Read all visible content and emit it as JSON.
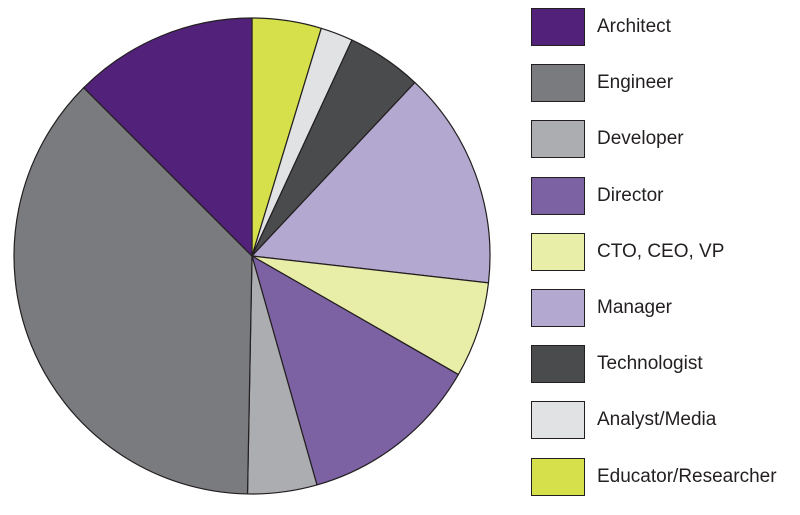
{
  "chart_data": {
    "type": "pie",
    "title": "",
    "legend_position": "right",
    "slices": [
      {
        "label": "Educator/Researcher",
        "value": 4.7,
        "color": "#d5e04a"
      },
      {
        "label": "Analyst/Media",
        "value": 2.2,
        "color": "#e1e2e3"
      },
      {
        "label": "Technologist",
        "value": 5.1,
        "color": "#4a4b4d"
      },
      {
        "label": "Manager",
        "value": 14.8,
        "color": "#b3a8cf"
      },
      {
        "label": "CTO, CEO, VP",
        "value": 6.5,
        "color": "#e8eea8"
      },
      {
        "label": "Director",
        "value": 12.3,
        "color": "#7c62a3"
      },
      {
        "label": "Developer",
        "value": 4.7,
        "color": "#acadb0"
      },
      {
        "label": "Engineer",
        "value": 37.2,
        "color": "#7a7b7e"
      },
      {
        "label": "Architect",
        "value": 12.5,
        "color": "#52227b"
      }
    ]
  },
  "legend": {
    "items": [
      {
        "label": "Architect",
        "color": "#52227b"
      },
      {
        "label": "Engineer",
        "color": "#7a7b7e"
      },
      {
        "label": "Developer",
        "color": "#acadb0"
      },
      {
        "label": "Director",
        "color": "#7c62a3"
      },
      {
        "label": "CTO, CEO, VP",
        "color": "#e8eea8"
      },
      {
        "label": "Manager",
        "color": "#b3a8cf"
      },
      {
        "label": "Technologist",
        "color": "#4a4b4d"
      },
      {
        "label": "Analyst/Media",
        "color": "#e1e2e3"
      },
      {
        "label": "Educator/Researcher",
        "color": "#d5e04a"
      }
    ]
  }
}
